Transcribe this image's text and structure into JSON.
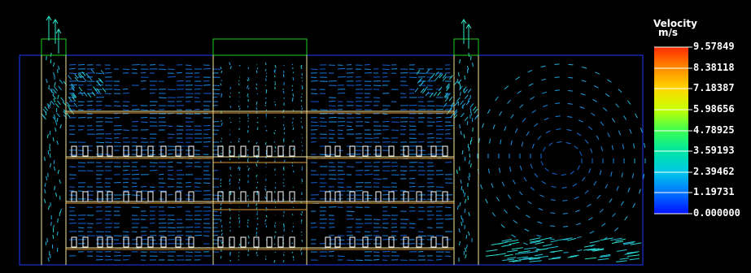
{
  "legend": {
    "title": "Velocity",
    "unit": "m/s",
    "ticks": [
      "9.57849",
      "8.38118",
      "7.18387",
      "5.98656",
      "4.78925",
      "3.59193",
      "2.39462",
      "1.19731",
      "0.000000"
    ]
  },
  "colors": {
    "background": "#000000",
    "domain_outline": "#1a3cff",
    "wall_lines": "#f5e6a0",
    "inlet_outline": "#22cc22",
    "slow_vector": "#1e78e6",
    "fast_vector": "#2ee6c8"
  }
}
